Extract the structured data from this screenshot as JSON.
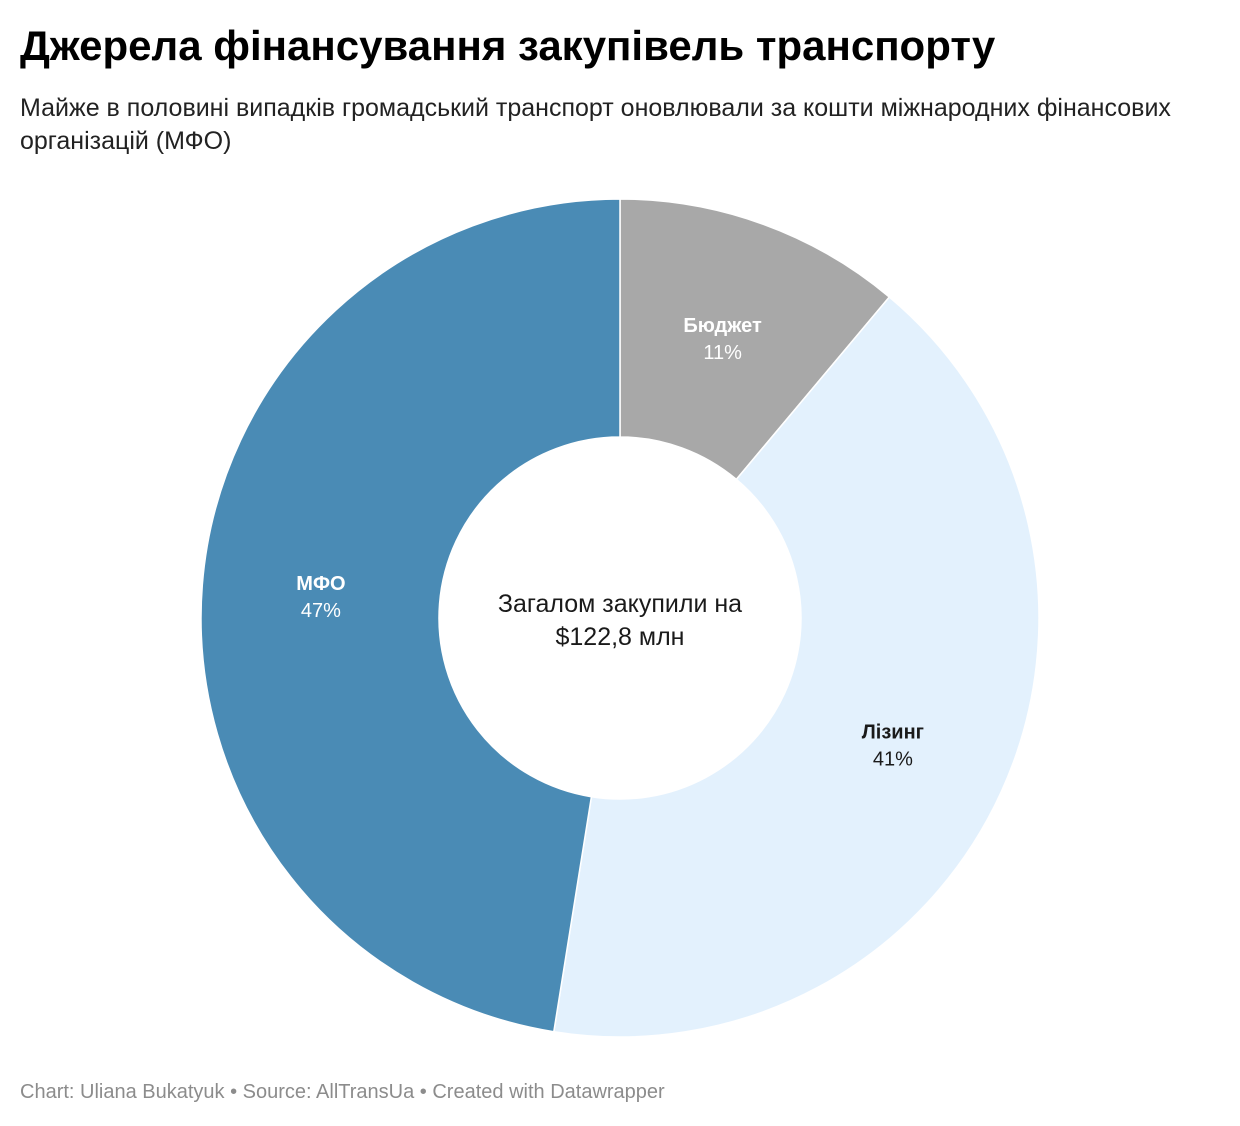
{
  "title": "Джерела фінансування закупівель транспорту",
  "subtitle": "Майже в половині випадків громадський транспорт оновлювали за кошти міжнародних фінансових організацій (МФО)",
  "footer": {
    "chart_credit": "Chart: Uliana Bukatyuk",
    "source": "Source: AllTransUa",
    "created_with": "Created with Datawrapper",
    "separator": " • "
  },
  "chart_data": {
    "type": "pie",
    "donut": true,
    "center_label": [
      "Загалом закупили на",
      "$122,8 млн"
    ],
    "slices": [
      {
        "name": "Бюджет",
        "value": 11,
        "label": "11%",
        "color": "#a8a8a8",
        "text_color": "#ffffff"
      },
      {
        "name": "Лізинг",
        "value": 41,
        "label": "41%",
        "color": "#e3f1fd",
        "text_color": "#1a1a1a"
      },
      {
        "name": "МФО",
        "value": 47,
        "label": "47%",
        "color": "#4a8bb5",
        "text_color": "#ffffff"
      }
    ]
  }
}
